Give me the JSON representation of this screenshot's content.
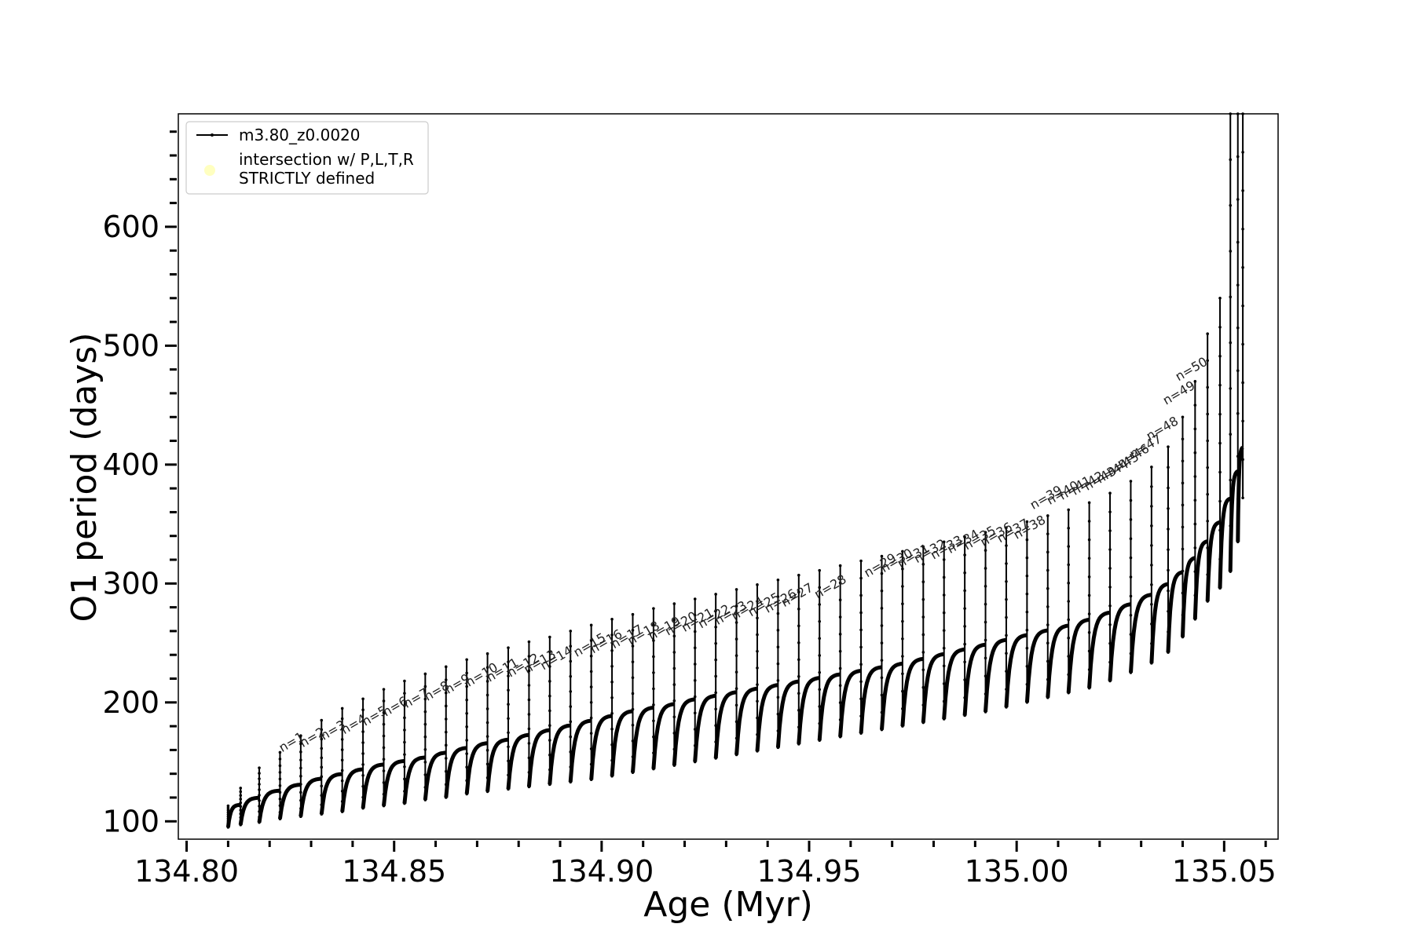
{
  "chart_data": {
    "type": "line",
    "xlabel": "Age (Myr)",
    "ylabel": "O1 period (days)",
    "xlim": [
      134.798,
      135.063
    ],
    "ylim": [
      85,
      695
    ],
    "xticks": [
      {
        "v": 134.8,
        "label": "134.80"
      },
      {
        "v": 134.85,
        "label": "134.85"
      },
      {
        "v": 134.9,
        "label": "134.90"
      },
      {
        "v": 134.95,
        "label": "134.95"
      },
      {
        "v": 135.0,
        "label": "135.00"
      },
      {
        "v": 135.05,
        "label": "135.05"
      }
    ],
    "yticks": [
      {
        "v": 100,
        "label": "100"
      },
      {
        "v": 200,
        "label": "200"
      },
      {
        "v": 300,
        "label": "300"
      },
      {
        "v": 400,
        "label": "400"
      },
      {
        "v": 500,
        "label": "500"
      },
      {
        "v": 600,
        "label": "600"
      }
    ],
    "x_minor_step": 0.01,
    "y_minor_step": 20,
    "legend": {
      "position": "upper-left",
      "entries": [
        {
          "label": "m3.80_z0.0020",
          "marker": "line"
        },
        {
          "label_lines": [
            "intersection w/ P,L,T,R",
            "STRICTLY defined"
          ],
          "marker": "circle",
          "color": "#ffffc0"
        }
      ]
    },
    "series": [
      {
        "name": "m3.80_z0.0020",
        "color": "#000000",
        "pulses": [
          {
            "x": 134.81,
            "base": 100,
            "peak": 114,
            "spike": 113,
            "low": 95
          },
          {
            "x": 134.813,
            "base": 104,
            "peak": 120,
            "spike": 128,
            "low": 97
          },
          {
            "x": 134.8175,
            "base": 108,
            "peak": 126,
            "spike": 145,
            "low": 99
          },
          {
            "x": 134.8225,
            "base": 111,
            "peak": 131,
            "spike": 158,
            "low": 102
          },
          {
            "x": 134.8275,
            "base": 114,
            "peak": 136,
            "spike": 172,
            "low": 104
          },
          {
            "x": 134.8325,
            "base": 117,
            "peak": 140,
            "spike": 185,
            "low": 106
          },
          {
            "x": 134.8375,
            "base": 120,
            "peak": 144,
            "spike": 195,
            "low": 108
          },
          {
            "x": 134.8425,
            "base": 123,
            "peak": 148,
            "spike": 203,
            "low": 111
          },
          {
            "x": 134.8475,
            "base": 126,
            "peak": 151,
            "spike": 211,
            "low": 113
          },
          {
            "x": 134.8525,
            "base": 128,
            "peak": 154,
            "spike": 218,
            "low": 115
          },
          {
            "x": 134.8575,
            "base": 131,
            "peak": 158,
            "spike": 224,
            "low": 118
          },
          {
            "x": 134.8625,
            "base": 134,
            "peak": 162,
            "spike": 230,
            "low": 120
          },
          {
            "x": 134.8675,
            "base": 137,
            "peak": 166,
            "spike": 236,
            "low": 123
          },
          {
            "x": 134.8725,
            "base": 139,
            "peak": 169,
            "spike": 241,
            "low": 125
          },
          {
            "x": 134.8775,
            "base": 141,
            "peak": 173,
            "spike": 246,
            "low": 127
          },
          {
            "x": 134.8825,
            "base": 143,
            "peak": 177,
            "spike": 251,
            "low": 129
          },
          {
            "x": 134.8875,
            "base": 145,
            "peak": 181,
            "spike": 255,
            "low": 131
          },
          {
            "x": 134.8925,
            "base": 148,
            "peak": 185,
            "spike": 260,
            "low": 133
          },
          {
            "x": 134.8975,
            "base": 150,
            "peak": 189,
            "spike": 265,
            "low": 135
          },
          {
            "x": 134.9025,
            "base": 152,
            "peak": 193,
            "spike": 270,
            "low": 138
          },
          {
            "x": 134.9075,
            "base": 155,
            "peak": 196,
            "spike": 274,
            "low": 141
          },
          {
            "x": 134.9125,
            "base": 157,
            "peak": 199,
            "spike": 279,
            "low": 144
          },
          {
            "x": 134.9175,
            "base": 160,
            "peak": 203,
            "spike": 283,
            "low": 147
          },
          {
            "x": 134.9225,
            "base": 162,
            "peak": 206,
            "spike": 287,
            "low": 150
          },
          {
            "x": 134.9275,
            "base": 165,
            "peak": 209,
            "spike": 291,
            "low": 153
          },
          {
            "x": 134.9325,
            "base": 168,
            "peak": 212,
            "spike": 295,
            "low": 156
          },
          {
            "x": 134.9375,
            "base": 171,
            "peak": 215,
            "spike": 299,
            "low": 159
          },
          {
            "x": 134.9425,
            "base": 174,
            "peak": 218,
            "spike": 303,
            "low": 162
          },
          {
            "x": 134.9475,
            "base": 177,
            "peak": 221,
            "spike": 307,
            "low": 165
          },
          {
            "x": 134.9525,
            "base": 180,
            "peak": 224,
            "spike": 311,
            "low": 168
          },
          {
            "x": 134.9575,
            "base": 183,
            "peak": 227,
            "spike": 315,
            "low": 171
          },
          {
            "x": 134.9625,
            "base": 186,
            "peak": 230,
            "spike": 319,
            "low": 174
          },
          {
            "x": 134.9675,
            "base": 189,
            "peak": 233,
            "spike": 323,
            "low": 177
          },
          {
            "x": 134.9725,
            "base": 192,
            "peak": 237,
            "spike": 327,
            "low": 180
          },
          {
            "x": 134.9775,
            "base": 195,
            "peak": 241,
            "spike": 331,
            "low": 183
          },
          {
            "x": 134.9825,
            "base": 198,
            "peak": 245,
            "spike": 335,
            "low": 186
          },
          {
            "x": 134.9875,
            "base": 201,
            "peak": 249,
            "spike": 339,
            "low": 189
          },
          {
            "x": 134.9925,
            "base": 204,
            "peak": 253,
            "spike": 343,
            "low": 192
          },
          {
            "x": 134.9975,
            "base": 208,
            "peak": 257,
            "spike": 347,
            "low": 196
          },
          {
            "x": 135.0025,
            "base": 212,
            "peak": 261,
            "spike": 352,
            "low": 200
          },
          {
            "x": 135.0075,
            "base": 216,
            "peak": 265,
            "spike": 357,
            "low": 204
          },
          {
            "x": 135.0125,
            "base": 220,
            "peak": 270,
            "spike": 362,
            "low": 208
          },
          {
            "x": 135.0175,
            "base": 225,
            "peak": 276,
            "spike": 368,
            "low": 212
          },
          {
            "x": 135.0225,
            "base": 231,
            "peak": 283,
            "spike": 376,
            "low": 218
          },
          {
            "x": 135.0275,
            "base": 238,
            "peak": 291,
            "spike": 386,
            "low": 225
          },
          {
            "x": 135.0325,
            "base": 246,
            "peak": 300,
            "spike": 398,
            "low": 233
          },
          {
            "x": 135.0365,
            "base": 256,
            "peak": 310,
            "spike": 415,
            "low": 242
          },
          {
            "x": 135.04,
            "base": 268,
            "peak": 322,
            "spike": 440,
            "low": 255
          },
          {
            "x": 135.043,
            "base": 281,
            "peak": 336,
            "spike": 470,
            "low": 270
          },
          {
            "x": 135.046,
            "base": 295,
            "peak": 352,
            "spike": 510,
            "low": 285
          },
          {
            "x": 135.049,
            "base": 310,
            "peak": 372,
            "spike": 540,
            "low": 296
          },
          {
            "x": 135.0515,
            "base": 325,
            "peak": 395,
            "spike": 700,
            "low": 310
          },
          {
            "x": 135.0533,
            "base": 340,
            "peak": 415,
            "spike": 700,
            "low": 335
          },
          {
            "x": 135.0545,
            "base": 372,
            "peak": 415,
            "spike": 700,
            "low": 372
          }
        ]
      }
    ],
    "annotations": [
      {
        "label": "n=1",
        "x": 134.823,
        "y": 158
      },
      {
        "label": "n=2",
        "x": 134.828,
        "y": 162
      },
      {
        "label": "n=3",
        "x": 134.833,
        "y": 168
      },
      {
        "label": "n=4",
        "x": 134.838,
        "y": 173
      },
      {
        "label": "n=5",
        "x": 134.843,
        "y": 180
      },
      {
        "label": "n=6",
        "x": 134.848,
        "y": 188
      },
      {
        "label": "n=7",
        "x": 134.853,
        "y": 195
      },
      {
        "label": "n=8",
        "x": 134.858,
        "y": 201
      },
      {
        "label": "n=9",
        "x": 134.863,
        "y": 207
      },
      {
        "label": "n=10",
        "x": 134.868,
        "y": 213
      },
      {
        "label": "n=11",
        "x": 134.873,
        "y": 217
      },
      {
        "label": "n=12",
        "x": 134.878,
        "y": 221
      },
      {
        "label": "n=13",
        "x": 134.882,
        "y": 224
      },
      {
        "label": "n=14",
        "x": 134.886,
        "y": 227
      },
      {
        "label": "n=15",
        "x": 134.894,
        "y": 238
      },
      {
        "label": "n=16",
        "x": 134.898,
        "y": 241
      },
      {
        "label": "n=17",
        "x": 134.903,
        "y": 245
      },
      {
        "label": "n=18",
        "x": 134.907,
        "y": 248
      },
      {
        "label": "n=19",
        "x": 134.912,
        "y": 252
      },
      {
        "label": "n=20",
        "x": 134.916,
        "y": 256
      },
      {
        "label": "n=21",
        "x": 134.92,
        "y": 259
      },
      {
        "label": "n=22",
        "x": 134.924,
        "y": 262
      },
      {
        "label": "n=23",
        "x": 134.928,
        "y": 265
      },
      {
        "label": "n=24",
        "x": 134.932,
        "y": 269
      },
      {
        "label": "n=25",
        "x": 134.936,
        "y": 272
      },
      {
        "label": "n=26",
        "x": 134.94,
        "y": 275
      },
      {
        "label": "n=27",
        "x": 134.944,
        "y": 280
      },
      {
        "label": "n=28",
        "x": 134.952,
        "y": 287
      },
      {
        "label": "n=29",
        "x": 134.964,
        "y": 305
      },
      {
        "label": "n=30",
        "x": 134.968,
        "y": 309
      },
      {
        "label": "n=31",
        "x": 134.972,
        "y": 313
      },
      {
        "label": "n=32",
        "x": 134.976,
        "y": 317
      },
      {
        "label": "n=33",
        "x": 134.98,
        "y": 320
      },
      {
        "label": "n=34",
        "x": 134.984,
        "y": 325
      },
      {
        "label": "n=35",
        "x": 134.988,
        "y": 328
      },
      {
        "label": "n=36",
        "x": 134.992,
        "y": 331
      },
      {
        "label": "n=37",
        "x": 134.996,
        "y": 334
      },
      {
        "label": "n=38",
        "x": 135.0,
        "y": 337
      },
      {
        "label": "n=39",
        "x": 135.004,
        "y": 362
      },
      {
        "label": "n=40",
        "x": 135.008,
        "y": 366
      },
      {
        "label": "n=41",
        "x": 135.011,
        "y": 370
      },
      {
        "label": "n=42",
        "x": 135.014,
        "y": 374
      },
      {
        "label": "n=43",
        "x": 135.017,
        "y": 378
      },
      {
        "label": "n=44",
        "x": 135.02,
        "y": 384
      },
      {
        "label": "n=45",
        "x": 135.0225,
        "y": 390
      },
      {
        "label": "n=46",
        "x": 135.025,
        "y": 397
      },
      {
        "label": "n=47",
        "x": 135.028,
        "y": 405
      },
      {
        "label": "n=48",
        "x": 135.032,
        "y": 420
      },
      {
        "label": "n=49",
        "x": 135.036,
        "y": 450
      },
      {
        "label": "n=50",
        "x": 135.039,
        "y": 470
      }
    ]
  }
}
